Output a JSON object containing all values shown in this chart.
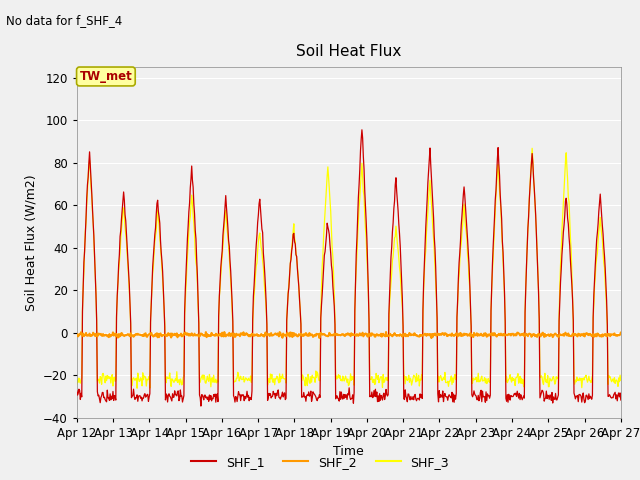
{
  "title": "Soil Heat Flux",
  "subtitle": "No data for f_SHF_4",
  "xlabel": "Time",
  "ylabel": "Soil Heat Flux (W/m2)",
  "annotation": "TW_met",
  "ylim": [
    -40,
    125
  ],
  "yticks": [
    -40,
    -20,
    0,
    20,
    40,
    60,
    80,
    100,
    120
  ],
  "xtick_labels": [
    "Apr 12",
    "Apr 13",
    "Apr 14",
    "Apr 15",
    "Apr 16",
    "Apr 17",
    "Apr 18",
    "Apr 19",
    "Apr 20",
    "Apr 21",
    "Apr 22",
    "Apr 23",
    "Apr 24",
    "Apr 25",
    "Apr 26",
    "Apr 27"
  ],
  "fig_facecolor": "#f0f0f0",
  "plot_facecolor": "#f0f0f0",
  "colors": {
    "SHF_1": "#cc0000",
    "SHF_2": "#ff9900",
    "SHF_3": "#ffff00"
  },
  "day_peaks_1": [
    85,
    67,
    63,
    79,
    64,
    63,
    48,
    53,
    98,
    74,
    87,
    70,
    86,
    86,
    65,
    66
  ],
  "day_peaks_3": [
    82,
    60,
    58,
    65,
    58,
    48,
    50,
    80,
    80,
    50,
    72,
    60,
    80,
    87,
    85,
    55
  ],
  "night_base_1": -30,
  "night_base_3": -22,
  "legend_entries": [
    "SHF_1",
    "SHF_2",
    "SHF_3"
  ]
}
